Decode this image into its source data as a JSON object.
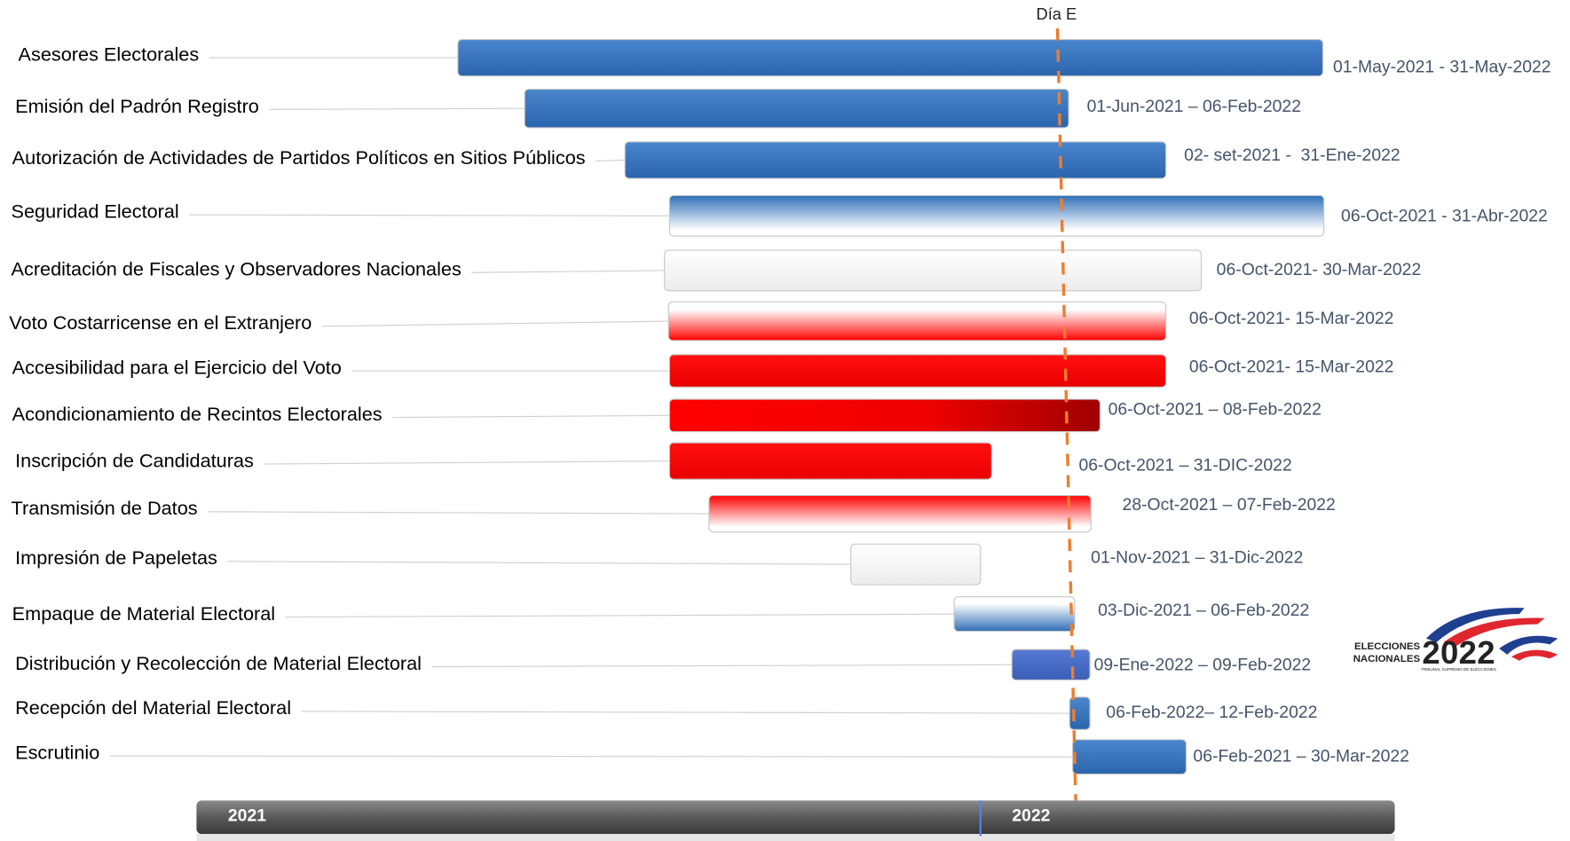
{
  "dia_e": "Día E",
  "rows": [
    {
      "label": "Asesores Electorales",
      "dates": "01-May-2021 - 31-May-2022"
    },
    {
      "label": "Emisión del Padrón Registro",
      "dates": "01-Jun-2021 – 06-Feb-2022"
    },
    {
      "label": "Autorización de Actividades de Partidos Políticos en Sitios Públicos",
      "dates": "02- set-2021 -  31-Ene-2022"
    },
    {
      "label": "Seguridad Electoral",
      "dates": "06-Oct-2021 - 31-Abr-2022"
    },
    {
      "label": "Acreditación de Fiscales y Observadores Nacionales",
      "dates": "06-Oct-2021- 30-Mar-2022"
    },
    {
      "label": "Voto Costarricense en el Extranjero",
      "dates": "06-Oct-2021- 15-Mar-2022"
    },
    {
      "label": "Accesibilidad para el Ejercicio del Voto",
      "dates": "06-Oct-2021- 15-Mar-2022"
    },
    {
      "label": "Acondicionamiento de Recintos Electorales",
      "dates": "06-Oct-2021 – 08-Feb-2022"
    },
    {
      "label": "Inscripción de Candidaturas",
      "dates": "06-Oct-2021 – 31-DIC-2022"
    },
    {
      "label": "Transmisión de Datos",
      "dates": "28-Oct-2021 – 07-Feb-2022"
    },
    {
      "label": "Impresión de Papeletas",
      "dates": "01-Nov-2021 – 31-Dic-2022"
    },
    {
      "label": "Empaque de Material Electoral",
      "dates": "03-Dic-2021 – 06-Feb-2022"
    },
    {
      "label": "Distribución y Recolección de Material Electoral",
      "dates": "09-Ene-2022 – 09-Feb-2022"
    },
    {
      "label": "Recepción del Material Electoral",
      "dates": "06-Feb-2022– 12-Feb-2022"
    },
    {
      "label": "Escrutinio",
      "dates": "06-Feb-2021 – 30-Mar-2022"
    }
  ],
  "timeline": {
    "years": [
      "2021",
      "2022"
    ]
  },
  "logo": {
    "line1": "ELECCIONES",
    "line2": "NACIONALES",
    "year": "2022",
    "caption": "TRIBUNAL SUPREMO DE ELECCIONES"
  }
}
